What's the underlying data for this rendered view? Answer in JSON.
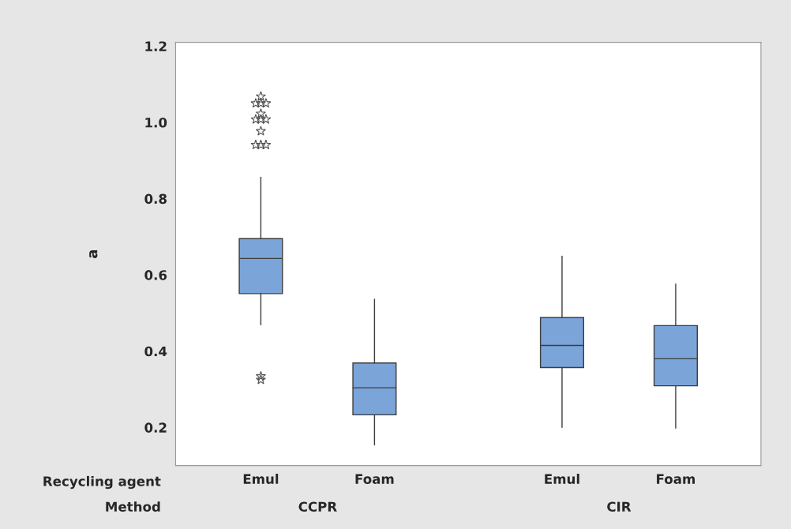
{
  "chart_data": {
    "type": "box",
    "ylabel": "a",
    "ylim": [
      0.1,
      1.21
    ],
    "yticks": [
      {
        "value": 0.2,
        "label": "0.2"
      },
      {
        "value": 0.4,
        "label": "0.4"
      },
      {
        "value": 0.6,
        "label": "0.6"
      },
      {
        "value": 0.8,
        "label": "0.8"
      },
      {
        "value": 1.0,
        "label": "1.0"
      },
      {
        "value": 1.2,
        "label": "1.2"
      }
    ],
    "categories": [
      "Emul",
      "Foam",
      "Emul",
      "Foam"
    ],
    "marker": "star",
    "grid": false,
    "color": "#7ba4d9",
    "annotations": [
      "Recycling agent",
      "Method",
      "CCPR",
      "CIR"
    ],
    "boxes": [
      {
        "low": 0.469,
        "q1": 0.551,
        "median": 0.643,
        "q3": 0.695,
        "high": 0.856,
        "outliers": [
          1.068,
          1.05,
          1.05,
          1.05,
          1.023,
          1.008,
          1.008,
          1.008,
          0.977,
          0.941,
          0.941,
          0.941,
          0.334,
          0.325
        ]
      },
      {
        "low": 0.154,
        "q1": 0.233,
        "median": 0.304,
        "q3": 0.369,
        "high": 0.536
      },
      {
        "low": 0.2,
        "q1": 0.357,
        "median": 0.415,
        "q3": 0.488,
        "high": 0.649
      },
      {
        "low": 0.198,
        "q1": 0.309,
        "median": 0.38,
        "q3": 0.467,
        "high": 0.576
      }
    ]
  }
}
